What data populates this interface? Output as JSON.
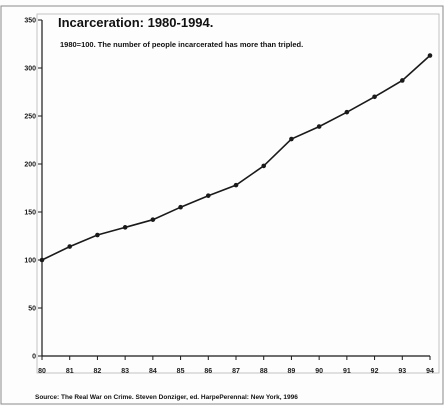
{
  "chart_data": {
    "type": "line",
    "title": "Incarceration: 1980-1994.",
    "subtitle": "1980=100. The number of people incarcerated has more than tripled.",
    "source": "Source: The Real War on Crime. Steven Donziger, ed. HarpePerennal: New York, 1996",
    "categories": [
      "80",
      "81",
      "82",
      "83",
      "84",
      "85",
      "86",
      "87",
      "88",
      "89",
      "90",
      "91",
      "92",
      "93",
      "94"
    ],
    "series": [
      {
        "values": [
          100,
          114,
          126,
          134,
          142,
          155,
          167,
          178,
          198,
          226,
          239,
          254,
          270,
          287,
          313
        ]
      }
    ],
    "yticks": [
      "0",
      "50",
      "100",
      "150",
      "200",
      "250",
      "300",
      "350"
    ],
    "ylim": [
      0,
      350
    ],
    "xlabel": "",
    "ylabel": "",
    "grid": false,
    "legend": "none",
    "colors": {
      "line": "#1a1a1a",
      "marker": "#1a1a1a",
      "axis": "#1a1a1a",
      "frame": "#8c8c8c"
    }
  }
}
